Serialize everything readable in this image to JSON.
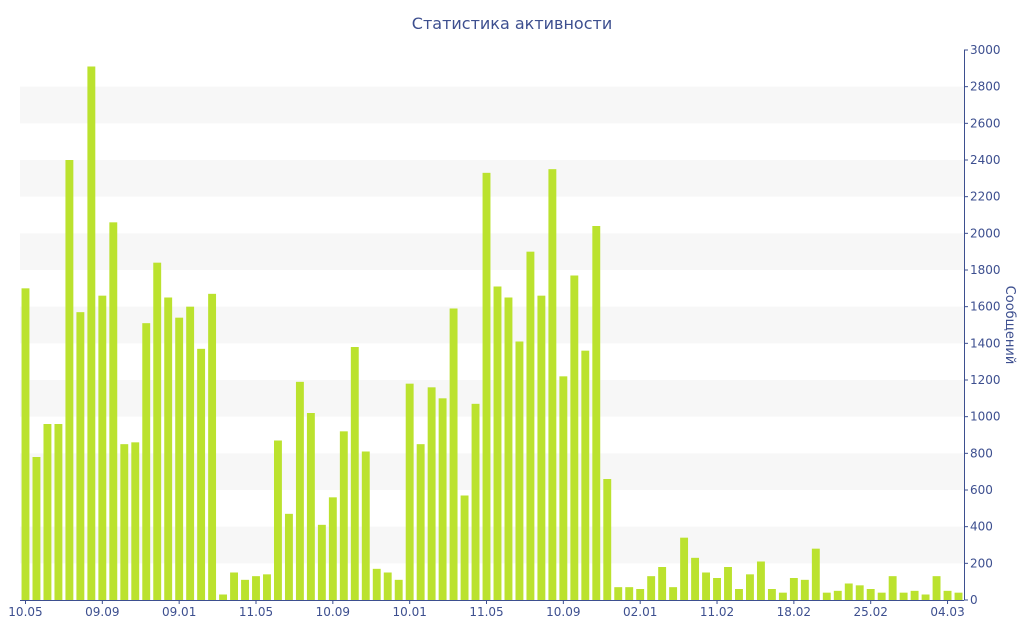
{
  "chart_data": {
    "type": "bar",
    "title": "Статистика активности",
    "ylabel": "Сообщений",
    "ylim": [
      0,
      3000
    ],
    "yticks": [
      0,
      200,
      400,
      600,
      800,
      1000,
      1200,
      1400,
      1600,
      1800,
      2000,
      2200,
      2400,
      2600,
      2800,
      3000
    ],
    "y_axis_side": "right",
    "grid": "alternating horizontal bands",
    "colors": {
      "bar": "#bbe22e",
      "text": "#3d4f8f",
      "band": "#f7f7f7",
      "axis": "#3d4f8f"
    },
    "xtick_labels": [
      {
        "label": "10.05",
        "index": 0
      },
      {
        "label": "09.09",
        "index": 7
      },
      {
        "label": "09.01",
        "index": 14
      },
      {
        "label": "11.05",
        "index": 21
      },
      {
        "label": "10.09",
        "index": 28
      },
      {
        "label": "10.01",
        "index": 35
      },
      {
        "label": "11.05",
        "index": 42
      },
      {
        "label": "10.09",
        "index": 49
      },
      {
        "label": "02.01",
        "index": 56
      },
      {
        "label": "11.02",
        "index": 63
      },
      {
        "label": "18.02",
        "index": 70
      },
      {
        "label": "25.02",
        "index": 77
      },
      {
        "label": "04.03",
        "index": 84
      }
    ],
    "values": [
      1700,
      780,
      960,
      960,
      2400,
      1570,
      2910,
      1660,
      2060,
      850,
      860,
      1510,
      1840,
      1650,
      1540,
      1600,
      1370,
      1670,
      30,
      150,
      110,
      130,
      140,
      870,
      470,
      1190,
      1020,
      410,
      560,
      920,
      1380,
      810,
      170,
      150,
      110,
      1180,
      850,
      1160,
      1100,
      1590,
      570,
      1070,
      2330,
      1710,
      1650,
      1410,
      1900,
      1660,
      2350,
      1220,
      1770,
      1360,
      2040,
      660,
      70,
      70,
      60,
      130,
      180,
      70,
      340,
      230,
      150,
      120,
      180,
      60,
      140,
      210,
      60,
      40,
      120,
      110,
      280,
      40,
      50,
      90,
      80,
      60,
      40,
      130,
      40,
      50,
      30,
      130,
      50,
      40
    ]
  }
}
